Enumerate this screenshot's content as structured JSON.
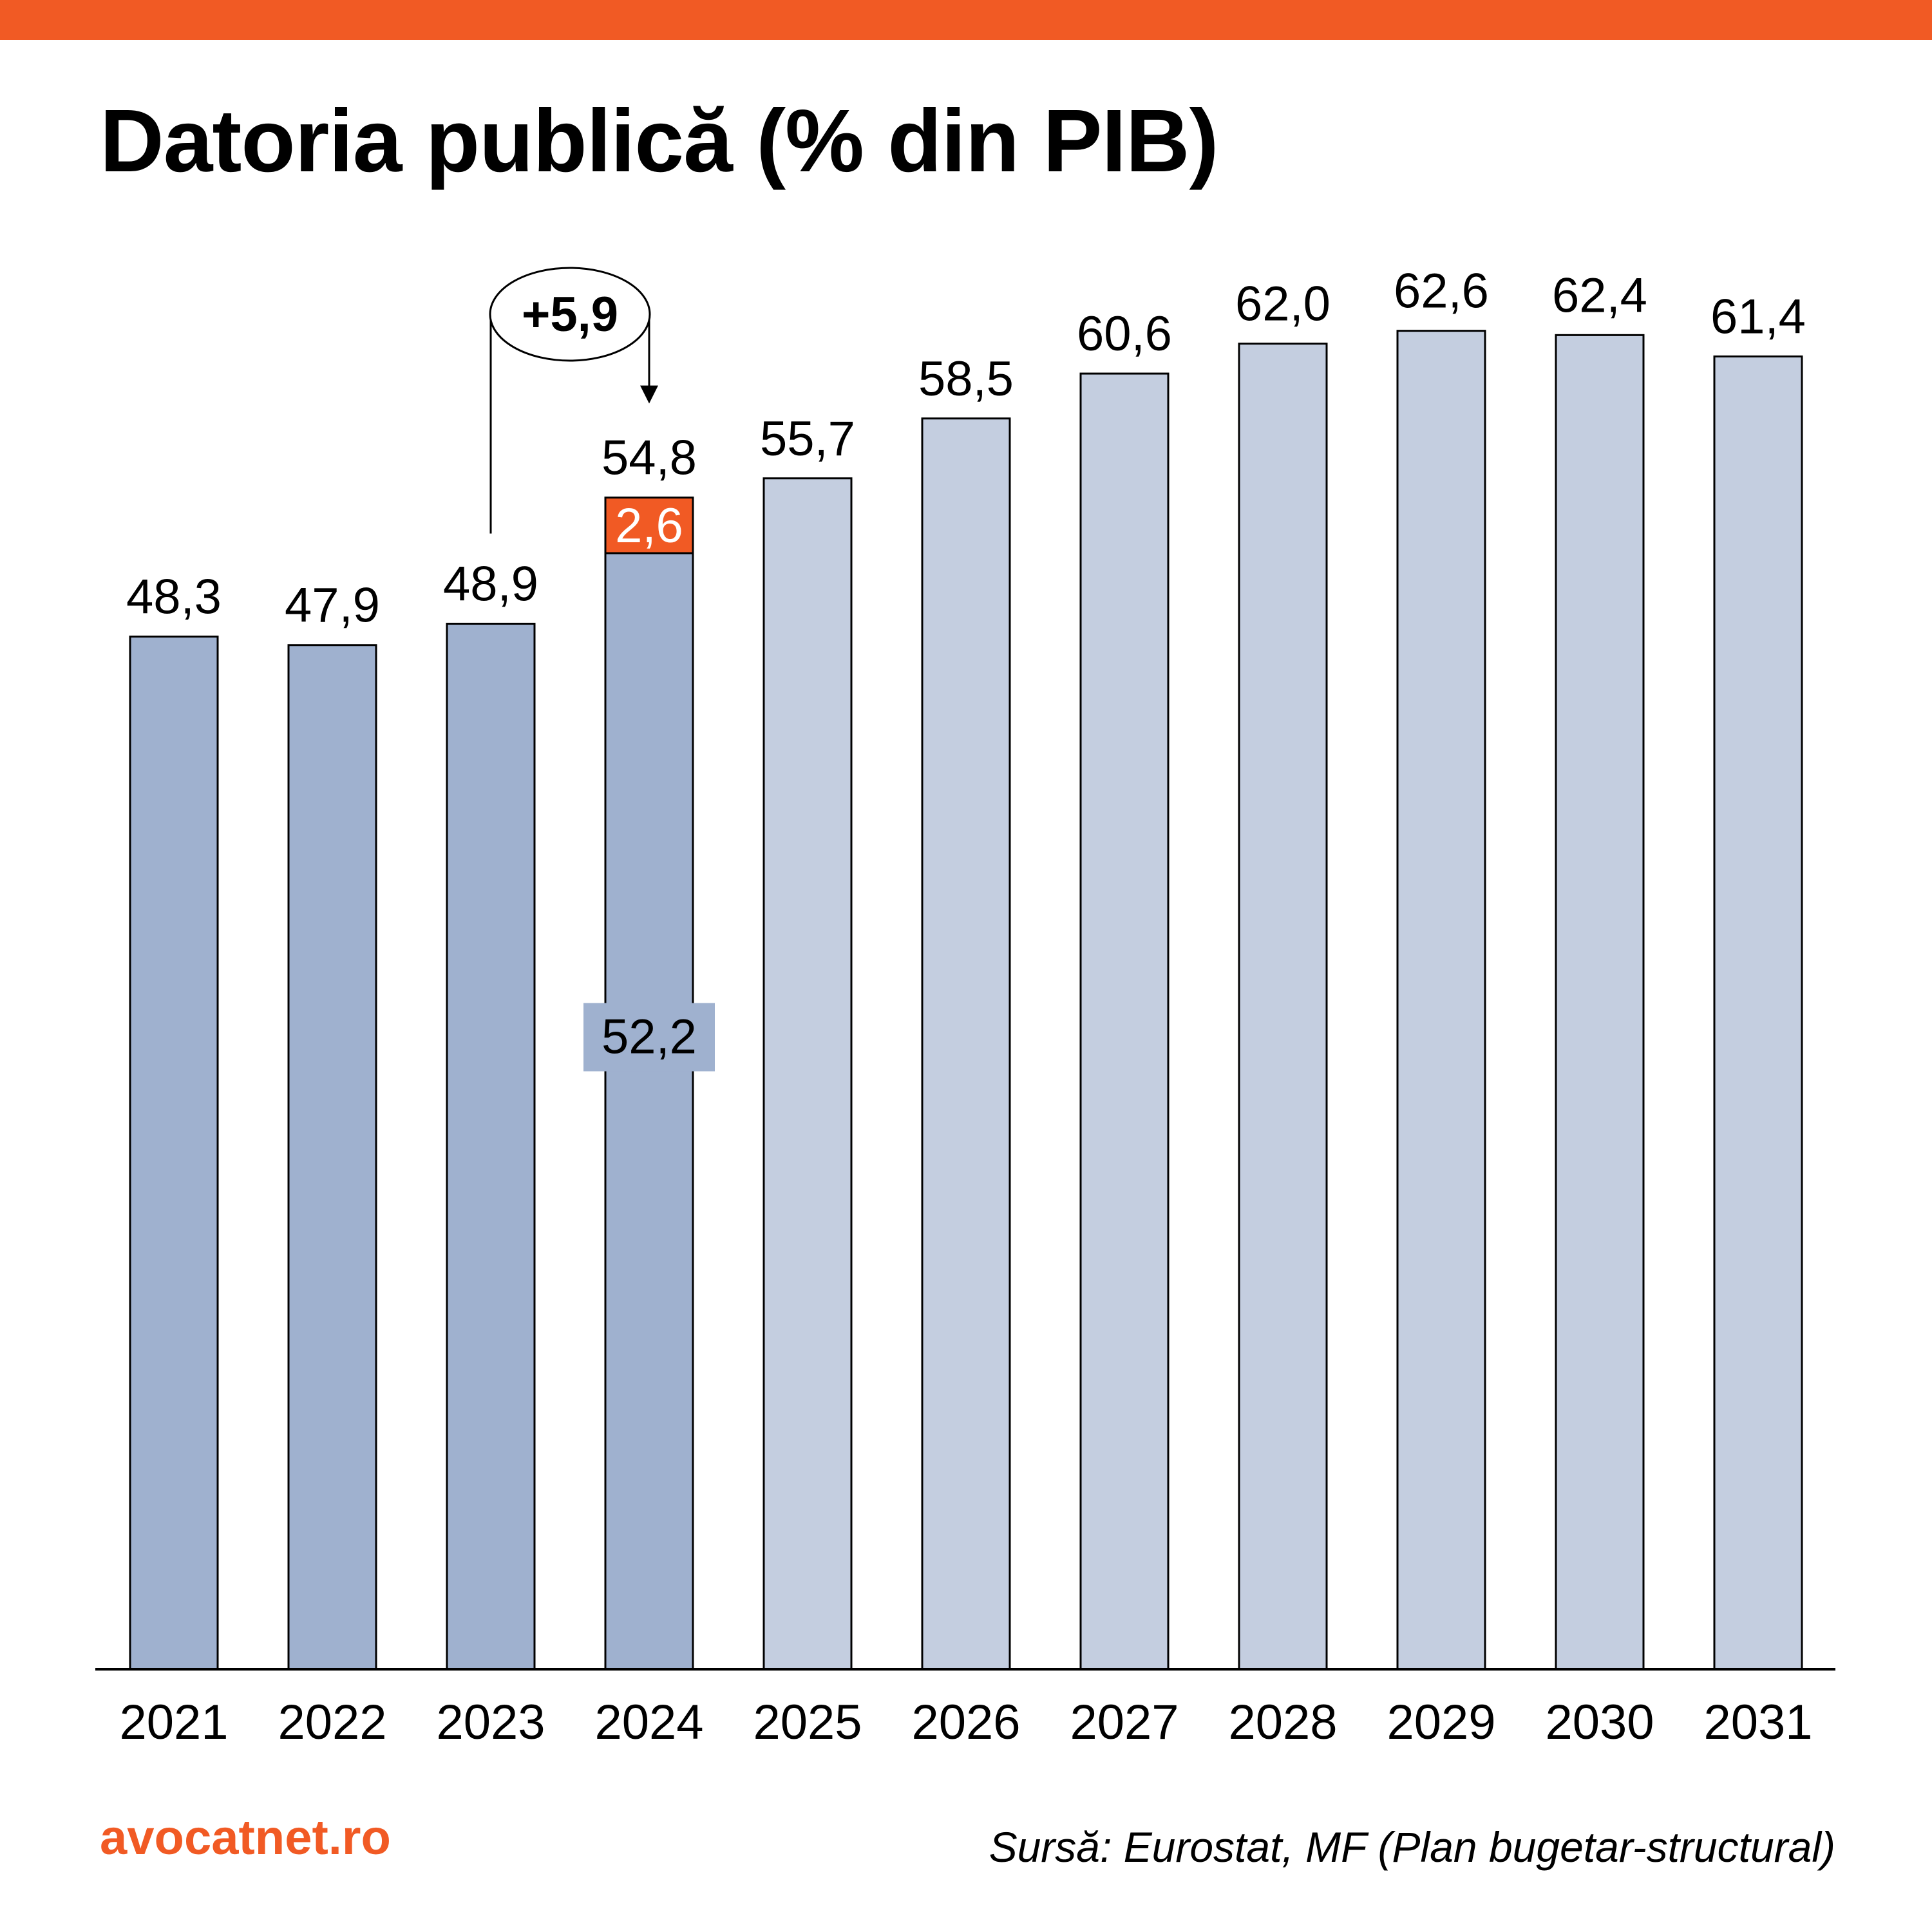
{
  "header": {
    "title": "Datoria publică (% din PIB)"
  },
  "colors": {
    "accent": "#F15A24",
    "bar_actual": "#9FB1CF",
    "bar_forecast": "#C4CEE0",
    "text": "#000000"
  },
  "chart_data": {
    "type": "bar",
    "title": "Datoria publică (% din PIB)",
    "categories": [
      "2021",
      "2022",
      "2023",
      "2024",
      "2025",
      "2026",
      "2027",
      "2028",
      "2029",
      "2030",
      "2031"
    ],
    "values": [
      48.3,
      47.9,
      48.9,
      54.8,
      55.7,
      58.5,
      60.6,
      62.0,
      62.6,
      62.4,
      61.4
    ],
    "value_labels": [
      "48,3",
      "47,9",
      "48,9",
      "54,8",
      "55,7",
      "58,5",
      "60,6",
      "62,0",
      "62,6",
      "62,4",
      "61,4"
    ],
    "forecast_start_index": 4,
    "ylim": [
      0,
      80
    ],
    "grid": false,
    "stacked_bar": {
      "category": "2024",
      "base": {
        "value": 52.2,
        "label": "52,2"
      },
      "top": {
        "value": 2.6,
        "label": "2,6"
      }
    },
    "annotation": {
      "text": "+5,9",
      "from": "2023",
      "to": "2024"
    }
  },
  "footer": {
    "brand": "avocatnet.ro",
    "source": "Sursă: Eurostat, MF (Plan bugetar-structural)"
  }
}
